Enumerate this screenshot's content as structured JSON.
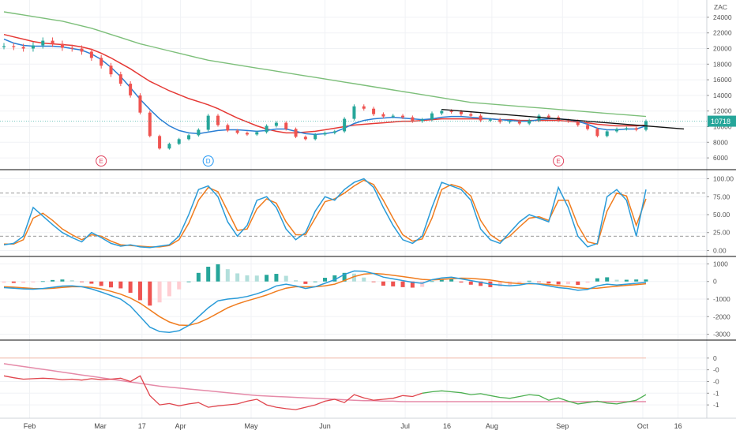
{
  "chart_data": [
    {
      "type": "line",
      "panel": "price",
      "currency_label": "ZAC",
      "last_price_label": "10718",
      "ylim": [
        5000,
        25000
      ],
      "yticks": [
        "6000",
        "8000",
        "10000",
        "12000",
        "14000",
        "16000",
        "18000",
        "20000",
        "22000",
        "24000"
      ],
      "ytick_values": [
        6000,
        8000,
        10000,
        12000,
        14000,
        16000,
        18000,
        20000,
        22000,
        24000
      ],
      "x_months": [
        "Feb",
        "Mar",
        "17",
        "Apr",
        "May",
        "Jun",
        "Jul",
        "16",
        "Aug",
        "Sep",
        "Oct",
        "16"
      ],
      "price_close": [
        20300,
        20200,
        20000,
        20400,
        21000,
        20600,
        20100,
        20000,
        19600,
        18800,
        17800,
        16700,
        15500,
        14000,
        11800,
        8800,
        7200,
        7800,
        8400,
        8900,
        9600,
        11400,
        10200,
        9500,
        9200,
        9000,
        9300,
        10100,
        10500,
        9700,
        8700,
        8400,
        9000,
        9200,
        9400,
        11000,
        12600,
        12300,
        11600,
        11300,
        11400,
        11200,
        10700,
        10900,
        11700,
        12000,
        11900,
        11600,
        11400,
        10800,
        10900,
        10600,
        10700,
        10400,
        10800,
        11400,
        11200,
        10800,
        10700,
        10200,
        9700,
        8800,
        9400,
        9700,
        9800,
        9600,
        10700
      ],
      "sma_fast": [
        21200,
        20700,
        20400,
        20300,
        20300,
        20300,
        20200,
        20000,
        19800,
        19300,
        18600,
        17600,
        16400,
        15000,
        13500,
        12200,
        11000,
        10100,
        9500,
        9200,
        9100,
        9300,
        9500,
        9600,
        9600,
        9500,
        9400,
        9500,
        9700,
        9700,
        9400,
        9100,
        9000,
        9100,
        9300,
        9800,
        10400,
        10800,
        11000,
        11100,
        11200,
        11100,
        11000,
        10900,
        11000,
        11200,
        11300,
        11300,
        11200,
        11100,
        11000,
        10900,
        10800,
        10700,
        10700,
        10900,
        11000,
        11000,
        10900,
        10700,
        10300,
        9800,
        9600,
        9600,
        9700,
        9700,
        10100
      ],
      "sma_mid": [
        21800,
        21500,
        21200,
        20900,
        20700,
        20600,
        20500,
        20400,
        20200,
        19900,
        19400,
        18800,
        18100,
        17400,
        16600,
        15800,
        15200,
        14600,
        14100,
        13600,
        13200,
        12800,
        12300,
        11700,
        11100,
        10600,
        10100,
        9700,
        9400,
        9200,
        9200,
        9300,
        9400,
        9600,
        9800,
        10000,
        10200,
        10300,
        10400,
        10500,
        10600,
        10700,
        10700,
        10800,
        10900,
        11000,
        11000,
        11000,
        11000,
        11000,
        11000,
        10900,
        10900,
        10800,
        10800,
        10800,
        10800,
        10800,
        10700,
        10600,
        10500,
        10300,
        10200,
        10100,
        10100,
        10100,
        10200
      ],
      "sma_slow": [
        24700,
        24500,
        24300,
        24100,
        23900,
        23700,
        23500,
        23200,
        22900,
        22600,
        22200,
        21800,
        21400,
        21000,
        20600,
        20300,
        20000,
        19700,
        19400,
        19100,
        18800,
        18500,
        18300,
        18100,
        17900,
        17700,
        17500,
        17300,
        17100,
        16900,
        16700,
        16500,
        16300,
        16100,
        15900,
        15700,
        15500,
        15300,
        15100,
        14900,
        14700,
        14500,
        14300,
        14100,
        13900,
        13700,
        13500,
        13300,
        13100,
        13000,
        12900,
        12800,
        12700,
        12600,
        12500,
        12400,
        12300,
        12200,
        12100,
        12000,
        11900,
        11800,
        11700,
        11600,
        11500,
        11400,
        11300
      ],
      "earnings_markers": [
        "E",
        "D",
        "E"
      ]
    },
    {
      "type": "line",
      "panel": "stochastic",
      "ylim": [
        -5,
        105
      ],
      "yticks": [
        "0.00",
        "25.00",
        "50.00",
        "75.00",
        "100.00"
      ],
      "ytick_values": [
        0,
        25,
        50,
        75,
        100
      ],
      "bands": [
        20,
        80
      ],
      "k": [
        8,
        10,
        20,
        60,
        48,
        36,
        25,
        18,
        12,
        25,
        18,
        10,
        6,
        8,
        5,
        4,
        6,
        8,
        20,
        50,
        85,
        90,
        75,
        40,
        20,
        35,
        70,
        75,
        60,
        30,
        15,
        25,
        55,
        75,
        70,
        85,
        95,
        100,
        88,
        60,
        35,
        15,
        10,
        20,
        60,
        95,
        90,
        85,
        70,
        30,
        15,
        10,
        25,
        40,
        50,
        45,
        40,
        88,
        60,
        20,
        5,
        10,
        75,
        85,
        70,
        20,
        85
      ],
      "d": [
        9,
        9,
        15,
        45,
        52,
        42,
        30,
        22,
        15,
        22,
        20,
        13,
        8,
        7,
        6,
        5,
        5,
        7,
        15,
        38,
        70,
        88,
        82,
        55,
        28,
        30,
        58,
        72,
        66,
        40,
        22,
        22,
        45,
        68,
        72,
        80,
        90,
        98,
        92,
        70,
        45,
        22,
        13,
        16,
        45,
        85,
        92,
        88,
        76,
        42,
        22,
        13,
        20,
        33,
        45,
        47,
        42,
        70,
        70,
        35,
        12,
        9,
        55,
        80,
        76,
        35,
        72
      ],
      "series": [
        {
          "name": "",
          "color": "#2a9bd8"
        },
        {
          "name": "",
          "color": "#f07c1e"
        }
      ]
    },
    {
      "type": "line",
      "panel": "macd",
      "ylim": [
        -3200,
        1200
      ],
      "yticks": [
        "1000",
        "0",
        "-1000",
        "-2000",
        "-3000"
      ],
      "ytick_values": [
        1000,
        0,
        -1000,
        -2000,
        -3000
      ],
      "macd": [
        -350,
        -380,
        -420,
        -440,
        -400,
        -330,
        -260,
        -250,
        -300,
        -420,
        -600,
        -800,
        -1000,
        -1400,
        -2000,
        -2600,
        -2850,
        -2900,
        -2800,
        -2500,
        -2000,
        -1500,
        -1100,
        -1000,
        -950,
        -850,
        -700,
        -500,
        -250,
        -150,
        -250,
        -400,
        -300,
        -100,
        100,
        400,
        600,
        580,
        450,
        250,
        150,
        50,
        -50,
        -100,
        100,
        200,
        250,
        150,
        50,
        -50,
        -150,
        -200,
        -250,
        -200,
        -100,
        -150,
        -250,
        -350,
        -400,
        -500,
        -450,
        -250,
        -150,
        -200,
        -150,
        -100,
        -50
      ],
      "signal": [
        -300,
        -320,
        -360,
        -400,
        -410,
        -390,
        -340,
        -300,
        -290,
        -330,
        -420,
        -560,
        -720,
        -940,
        -1240,
        -1620,
        -2000,
        -2300,
        -2480,
        -2500,
        -2350,
        -2100,
        -1800,
        -1500,
        -1280,
        -1100,
        -940,
        -770,
        -560,
        -380,
        -300,
        -300,
        -300,
        -250,
        -150,
        50,
        280,
        420,
        460,
        420,
        350,
        280,
        200,
        120,
        90,
        120,
        160,
        190,
        180,
        130,
        80,
        0,
        -80,
        -120,
        -130,
        -140,
        -170,
        -230,
        -290,
        -360,
        -400,
        -380,
        -320,
        -270,
        -220,
        -180,
        -130
      ],
      "series": [
        {
          "name": "",
          "color": "#2a9bd8"
        },
        {
          "name": "",
          "color": "#f07c1e"
        }
      ]
    },
    {
      "type": "line",
      "panel": "relative_strength",
      "ylim": [
        -1.2,
        0.3
      ],
      "yticks": [
        "0",
        "-0",
        "-0",
        "-1",
        "-1"
      ],
      "ytick_values": [
        0,
        -0.25,
        -0.5,
        -0.75,
        -1.0
      ],
      "rs": [
        -0.38,
        -0.42,
        -0.45,
        -0.44,
        -0.43,
        -0.44,
        -0.46,
        -0.45,
        -0.47,
        -0.44,
        -0.46,
        -0.45,
        -0.43,
        -0.5,
        -0.38,
        -0.8,
        -1.0,
        -0.97,
        -1.02,
        -0.98,
        -0.95,
        -1.05,
        -1.02,
        -1.0,
        -0.98,
        -0.92,
        -0.88,
        -1.0,
        -1.05,
        -1.08,
        -1.1,
        -1.05,
        -1.0,
        -0.92,
        -0.88,
        -0.95,
        -0.78,
        -0.85,
        -0.9,
        -0.88,
        -0.86,
        -0.8,
        -0.82,
        -0.75,
        -0.72,
        -0.7,
        -0.72,
        -0.74,
        -0.78,
        -0.76,
        -0.8,
        -0.84,
        -0.86,
        -0.82,
        -0.78,
        -0.8,
        -0.9,
        -0.85,
        -0.92,
        -0.98,
        -0.95,
        -0.92,
        -0.96,
        -0.98,
        -0.94,
        -0.9,
        -0.78
      ],
      "trend": [
        -0.12,
        -0.15,
        -0.18,
        -0.21,
        -0.24,
        -0.27,
        -0.3,
        -0.33,
        -0.36,
        -0.39,
        -0.42,
        -0.45,
        -0.48,
        -0.51,
        -0.54,
        -0.57,
        -0.6,
        -0.62,
        -0.64,
        -0.66,
        -0.68,
        -0.7,
        -0.72,
        -0.74,
        -0.76,
        -0.78,
        -0.8,
        -0.81,
        -0.82,
        -0.83,
        -0.84,
        -0.85,
        -0.86,
        -0.87,
        -0.88,
        -0.89,
        -0.9,
        -0.91,
        -0.91,
        -0.92,
        -0.92,
        -0.93,
        -0.93,
        -0.93,
        -0.93,
        -0.93,
        -0.93,
        -0.93,
        -0.93,
        -0.93,
        -0.93,
        -0.93,
        -0.93,
        -0.93,
        -0.93,
        -0.93,
        -0.93,
        -0.93,
        -0.93,
        -0.93,
        -0.93,
        -0.93,
        -0.93,
        -0.93,
        -0.93,
        -0.93,
        -0.93
      ],
      "series": [
        {
          "name": "",
          "color": "#e0454d"
        },
        {
          "name": "",
          "color": "#e58aa8"
        }
      ]
    }
  ],
  "colors": {
    "up": "#26a69a",
    "down": "#ef5350",
    "sma_fast": "#2a7fd4",
    "sma_mid": "#e53935",
    "sma_slow": "#7dbf7a",
    "trendline": "#111111",
    "last_price_bg": "#26a69a"
  }
}
